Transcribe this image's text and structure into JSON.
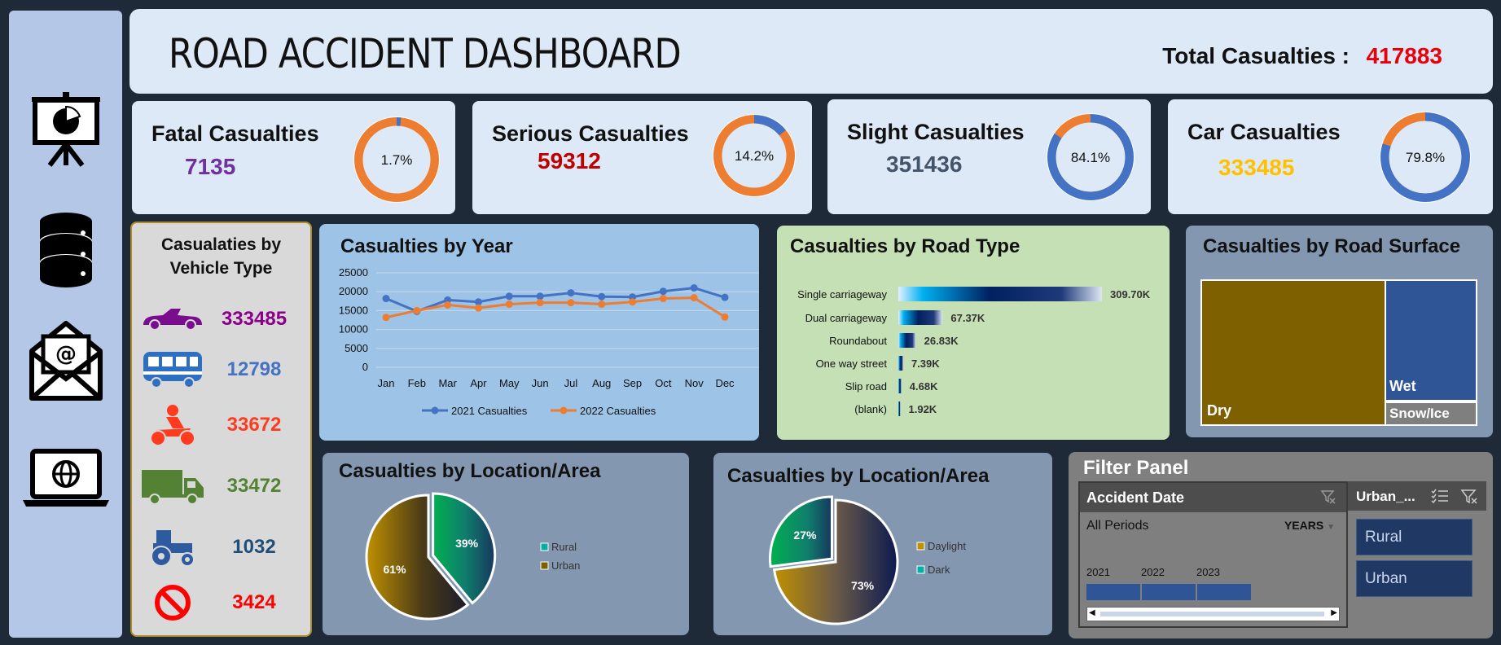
{
  "header": {
    "title": "ROAD ACCIDENT DASHBOARD",
    "total_label": "Total Casualties :",
    "total_value": "417883"
  },
  "sidebar": {
    "icons": [
      "presentation-chart-icon",
      "database-icon",
      "email-icon",
      "laptop-globe-icon"
    ]
  },
  "kpis": [
    {
      "title": "Fatal Casualties",
      "value": "7135",
      "pct_label": "1.7%",
      "pct": 1.7,
      "value_color": "#7030a0"
    },
    {
      "title": "Serious Casualties",
      "value": "59312",
      "pct_label": "14.2%",
      "pct": 14.2,
      "value_color": "#c00000"
    },
    {
      "title": "Slight Casualties",
      "value": "351436",
      "pct_label": "84.1%",
      "pct": 84.1,
      "value_color": "#44546a"
    },
    {
      "title": "Car Casualties",
      "value": "333485",
      "pct_label": "79.8%",
      "pct": 79.8,
      "value_color": "#ffc000"
    }
  ],
  "vehicle": {
    "title_line1": "Casualaties by",
    "title_line2": "Vehicle Type",
    "rows": [
      {
        "icon": "car-icon",
        "value": "333485",
        "color": "#8b008b"
      },
      {
        "icon": "bus-icon",
        "value": "12798",
        "color": "#4472c4"
      },
      {
        "icon": "motorcycle-icon",
        "value": "33672",
        "color": "#ff3b1f"
      },
      {
        "icon": "truck-icon",
        "value": "33472",
        "color": "#548235"
      },
      {
        "icon": "tractor-icon",
        "value": "1032",
        "color": "#1f4e79"
      },
      {
        "icon": "no-entry-icon",
        "value": "3424",
        "color": "#ff0000"
      }
    ]
  },
  "chart_data": [
    {
      "type": "line",
      "title": "Casualties by Year",
      "categories": [
        "Jan",
        "Feb",
        "Mar",
        "Apr",
        "May",
        "Jun",
        "Jul",
        "Aug",
        "Sep",
        "Oct",
        "Nov",
        "Dec"
      ],
      "series": [
        {
          "name": "2021 Casualties",
          "color": "#4472c4",
          "values": [
            18200,
            14800,
            17800,
            17300,
            18800,
            18800,
            19700,
            18700,
            18600,
            20100,
            21000,
            18500
          ]
        },
        {
          "name": "2022 Casualties",
          "color": "#ed7d31",
          "values": [
            13200,
            15000,
            16500,
            15700,
            16700,
            17100,
            17100,
            16700,
            17300,
            18200,
            18400,
            13300
          ]
        }
      ],
      "y_ticks": [
        "0",
        "5000",
        "10000",
        "15000",
        "20000",
        "25000"
      ],
      "ylim": [
        0,
        25000
      ],
      "grid": true,
      "legend": "bottom"
    },
    {
      "type": "bar",
      "title": "Casualties by Road Type",
      "categories": [
        "Single carriageway",
        "Dual carriageway",
        "Roundabout",
        "One way street",
        "Slip road",
        "(blank)"
      ],
      "values": [
        309700,
        67370,
        26830,
        7390,
        4680,
        1920
      ],
      "labels": [
        "309.70K",
        "67.37K",
        "26.83K",
        "7.39K",
        "4.68K",
        "1.92K"
      ]
    },
    {
      "type": "treemap",
      "title": "Casualties by Road Surface",
      "categories": [
        "Dry",
        "Wet",
        "Snow/Ice"
      ],
      "colors": [
        "#7f6000",
        "#2f5597",
        "#7f7f7f"
      ]
    },
    {
      "type": "pie",
      "title": "Casualties by Location/Area",
      "categories": [
        "Rural",
        "Urban"
      ],
      "values": [
        39,
        61
      ],
      "labels": [
        "39%",
        "61%"
      ]
    },
    {
      "type": "pie",
      "title": "Casualties by Location/Area",
      "categories": [
        "Daylight",
        "Dark"
      ],
      "values": [
        73,
        27
      ],
      "labels": [
        "73%",
        "27%"
      ]
    }
  ],
  "filter": {
    "title": "Filter Panel",
    "date_header": "Accident Date",
    "period_label": "All Periods",
    "period_unit": "YEARS",
    "years": [
      "2021",
      "2022",
      "2023"
    ],
    "urban_header": "Urban_...",
    "urban_options": [
      "Rural",
      "Urban"
    ]
  }
}
